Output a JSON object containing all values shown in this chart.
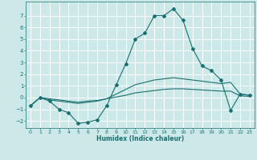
{
  "xlabel": "Humidex (Indice chaleur)",
  "bg_color": "#cce8e8",
  "plot_bg_color": "#cce8e8",
  "grid_color": "#ffffff",
  "line_color": "#1a7070",
  "xlim": [
    -0.5,
    23.5
  ],
  "ylim": [
    -2.6,
    8.2
  ],
  "xticks": [
    0,
    1,
    2,
    3,
    4,
    5,
    6,
    7,
    8,
    9,
    10,
    11,
    12,
    13,
    14,
    15,
    16,
    17,
    18,
    19,
    20,
    21,
    22,
    23
  ],
  "yticks": [
    -2,
    -1,
    0,
    1,
    2,
    3,
    4,
    5,
    6,
    7
  ],
  "series1_x": [
    0,
    1,
    2,
    3,
    4,
    5,
    6,
    7,
    8,
    9,
    10,
    11,
    12,
    13,
    14,
    15,
    16,
    17,
    18,
    19,
    20,
    21,
    22,
    23
  ],
  "series1_y": [
    -0.7,
    0.0,
    -0.3,
    -1.0,
    -1.3,
    -2.2,
    -2.1,
    -1.9,
    -0.7,
    1.1,
    2.9,
    5.0,
    5.5,
    7.0,
    7.0,
    7.6,
    6.6,
    4.2,
    2.7,
    2.3,
    1.5,
    -1.1,
    0.3,
    0.2
  ],
  "series2_x": [
    0,
    1,
    2,
    3,
    4,
    5,
    6,
    7,
    8,
    9,
    10,
    11,
    12,
    13,
    14,
    15,
    16,
    17,
    18,
    19,
    20,
    21,
    22,
    23
  ],
  "series2_y": [
    -0.7,
    0.0,
    -0.2,
    -0.3,
    -0.4,
    -0.5,
    -0.4,
    -0.3,
    -0.1,
    0.3,
    0.7,
    1.1,
    1.3,
    1.5,
    1.6,
    1.7,
    1.6,
    1.5,
    1.4,
    1.3,
    1.2,
    1.3,
    0.3,
    0.2
  ],
  "series3_x": [
    0,
    1,
    2,
    3,
    4,
    5,
    6,
    7,
    8,
    9,
    10,
    11,
    12,
    13,
    14,
    15,
    16,
    17,
    18,
    19,
    20,
    21,
    22,
    23
  ],
  "series3_y": [
    -0.7,
    0.0,
    -0.1,
    -0.2,
    -0.3,
    -0.4,
    -0.3,
    -0.25,
    -0.1,
    0.05,
    0.2,
    0.4,
    0.5,
    0.6,
    0.7,
    0.75,
    0.75,
    0.7,
    0.65,
    0.6,
    0.55,
    0.55,
    0.15,
    0.1
  ],
  "xlabel_fontsize": 5.5,
  "tick_fontsize": 4.5,
  "linewidth": 0.8,
  "markersize": 2.0
}
